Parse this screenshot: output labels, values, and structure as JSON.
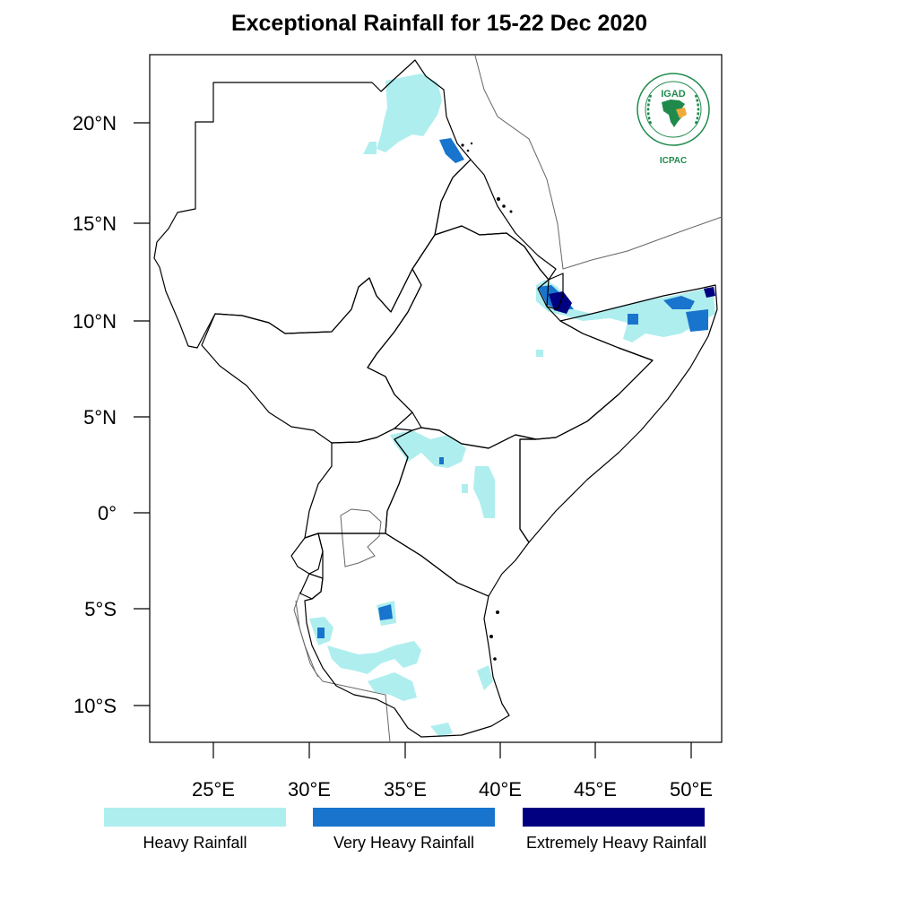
{
  "title": "Exceptional Rainfall for 15-22 Dec 2020",
  "lat_ticks": [
    "20°N",
    "15°N",
    "10°N",
    "5°N",
    "0°",
    "5°S",
    "10°S"
  ],
  "lon_ticks": [
    "25°E",
    "30°E",
    "35°E",
    "40°E",
    "45°E",
    "50°E"
  ],
  "legend": [
    {
      "label": "Heavy Rainfall",
      "color": "#afeeee"
    },
    {
      "label": "Very Heavy Rainfall",
      "color": "#1874cd"
    },
    {
      "label": "Extremely Heavy Rainfall",
      "color": "#000080"
    }
  ],
  "logo": {
    "text_top": "IGAD",
    "text_bottom": "ICPAC",
    "ring_text": "INTERGOVERNMENTAL AUTHORITY ON DEVELOPMENT",
    "icon": "igad-emblem-icon"
  },
  "colors": {
    "heavy": "#afeeee",
    "very_heavy": "#1874cd",
    "extreme": "#000080",
    "border": "#000000",
    "coast": "#666666"
  }
}
